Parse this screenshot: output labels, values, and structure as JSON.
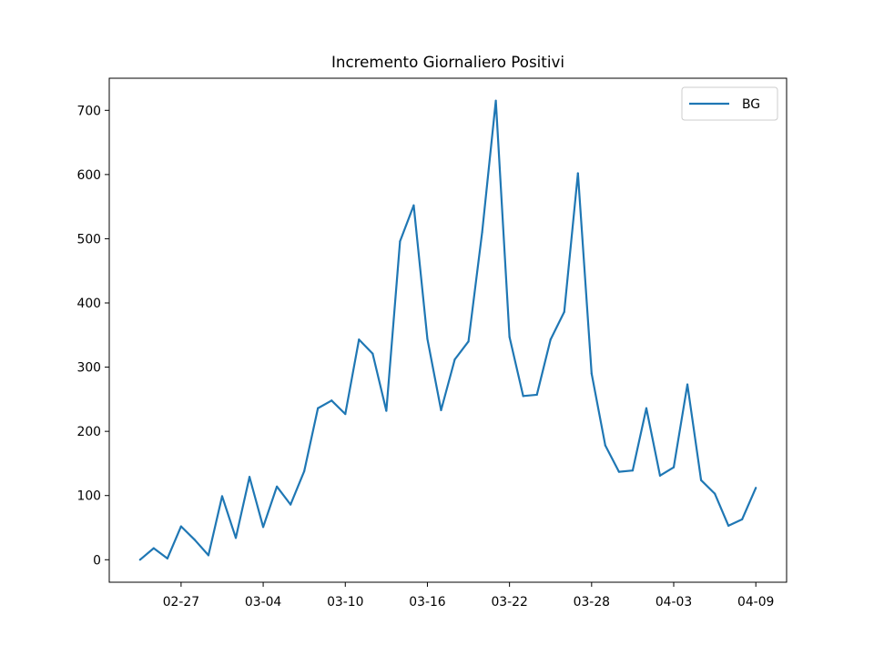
{
  "chart_data": {
    "type": "line",
    "title": "Incremento Giornaliero Positivi",
    "xlabel": "",
    "ylabel": "",
    "x": [
      "02-24",
      "02-25",
      "02-26",
      "02-27",
      "02-28",
      "02-29",
      "03-01",
      "03-02",
      "03-03",
      "03-04",
      "03-05",
      "03-06",
      "03-07",
      "03-08",
      "03-09",
      "03-10",
      "03-11",
      "03-12",
      "03-13",
      "03-14",
      "03-15",
      "03-16",
      "03-17",
      "03-18",
      "03-19",
      "03-20",
      "03-21",
      "03-22",
      "03-23",
      "03-24",
      "03-25",
      "03-26",
      "03-27",
      "03-28",
      "03-29",
      "03-30",
      "03-31",
      "04-01",
      "04-02",
      "04-03",
      "04-04",
      "04-05",
      "04-06",
      "04-07",
      "04-08",
      "04-09"
    ],
    "x_ticks": [
      "02-27",
      "03-04",
      "03-10",
      "03-16",
      "03-22",
      "03-28",
      "04-03",
      "04-09"
    ],
    "y_ticks": [
      0,
      100,
      200,
      300,
      400,
      500,
      600,
      700
    ],
    "ylim": [
      -35,
      750
    ],
    "series": [
      {
        "name": "BG",
        "color": "#1f77b4",
        "values": [
          0,
          18,
          2,
          52,
          31,
          7,
          99,
          34,
          129,
          51,
          114,
          86,
          138,
          236,
          248,
          227,
          343,
          321,
          232,
          496,
          552,
          344,
          233,
          312,
          340,
          510,
          715,
          347,
          255,
          257,
          343,
          386,
          602,
          290,
          178,
          137,
          139,
          236,
          131,
          144,
          273,
          124,
          103,
          53,
          63,
          112
        ]
      }
    ],
    "legend": {
      "position": "top-right",
      "entries": [
        "BG"
      ]
    },
    "grid": false
  }
}
